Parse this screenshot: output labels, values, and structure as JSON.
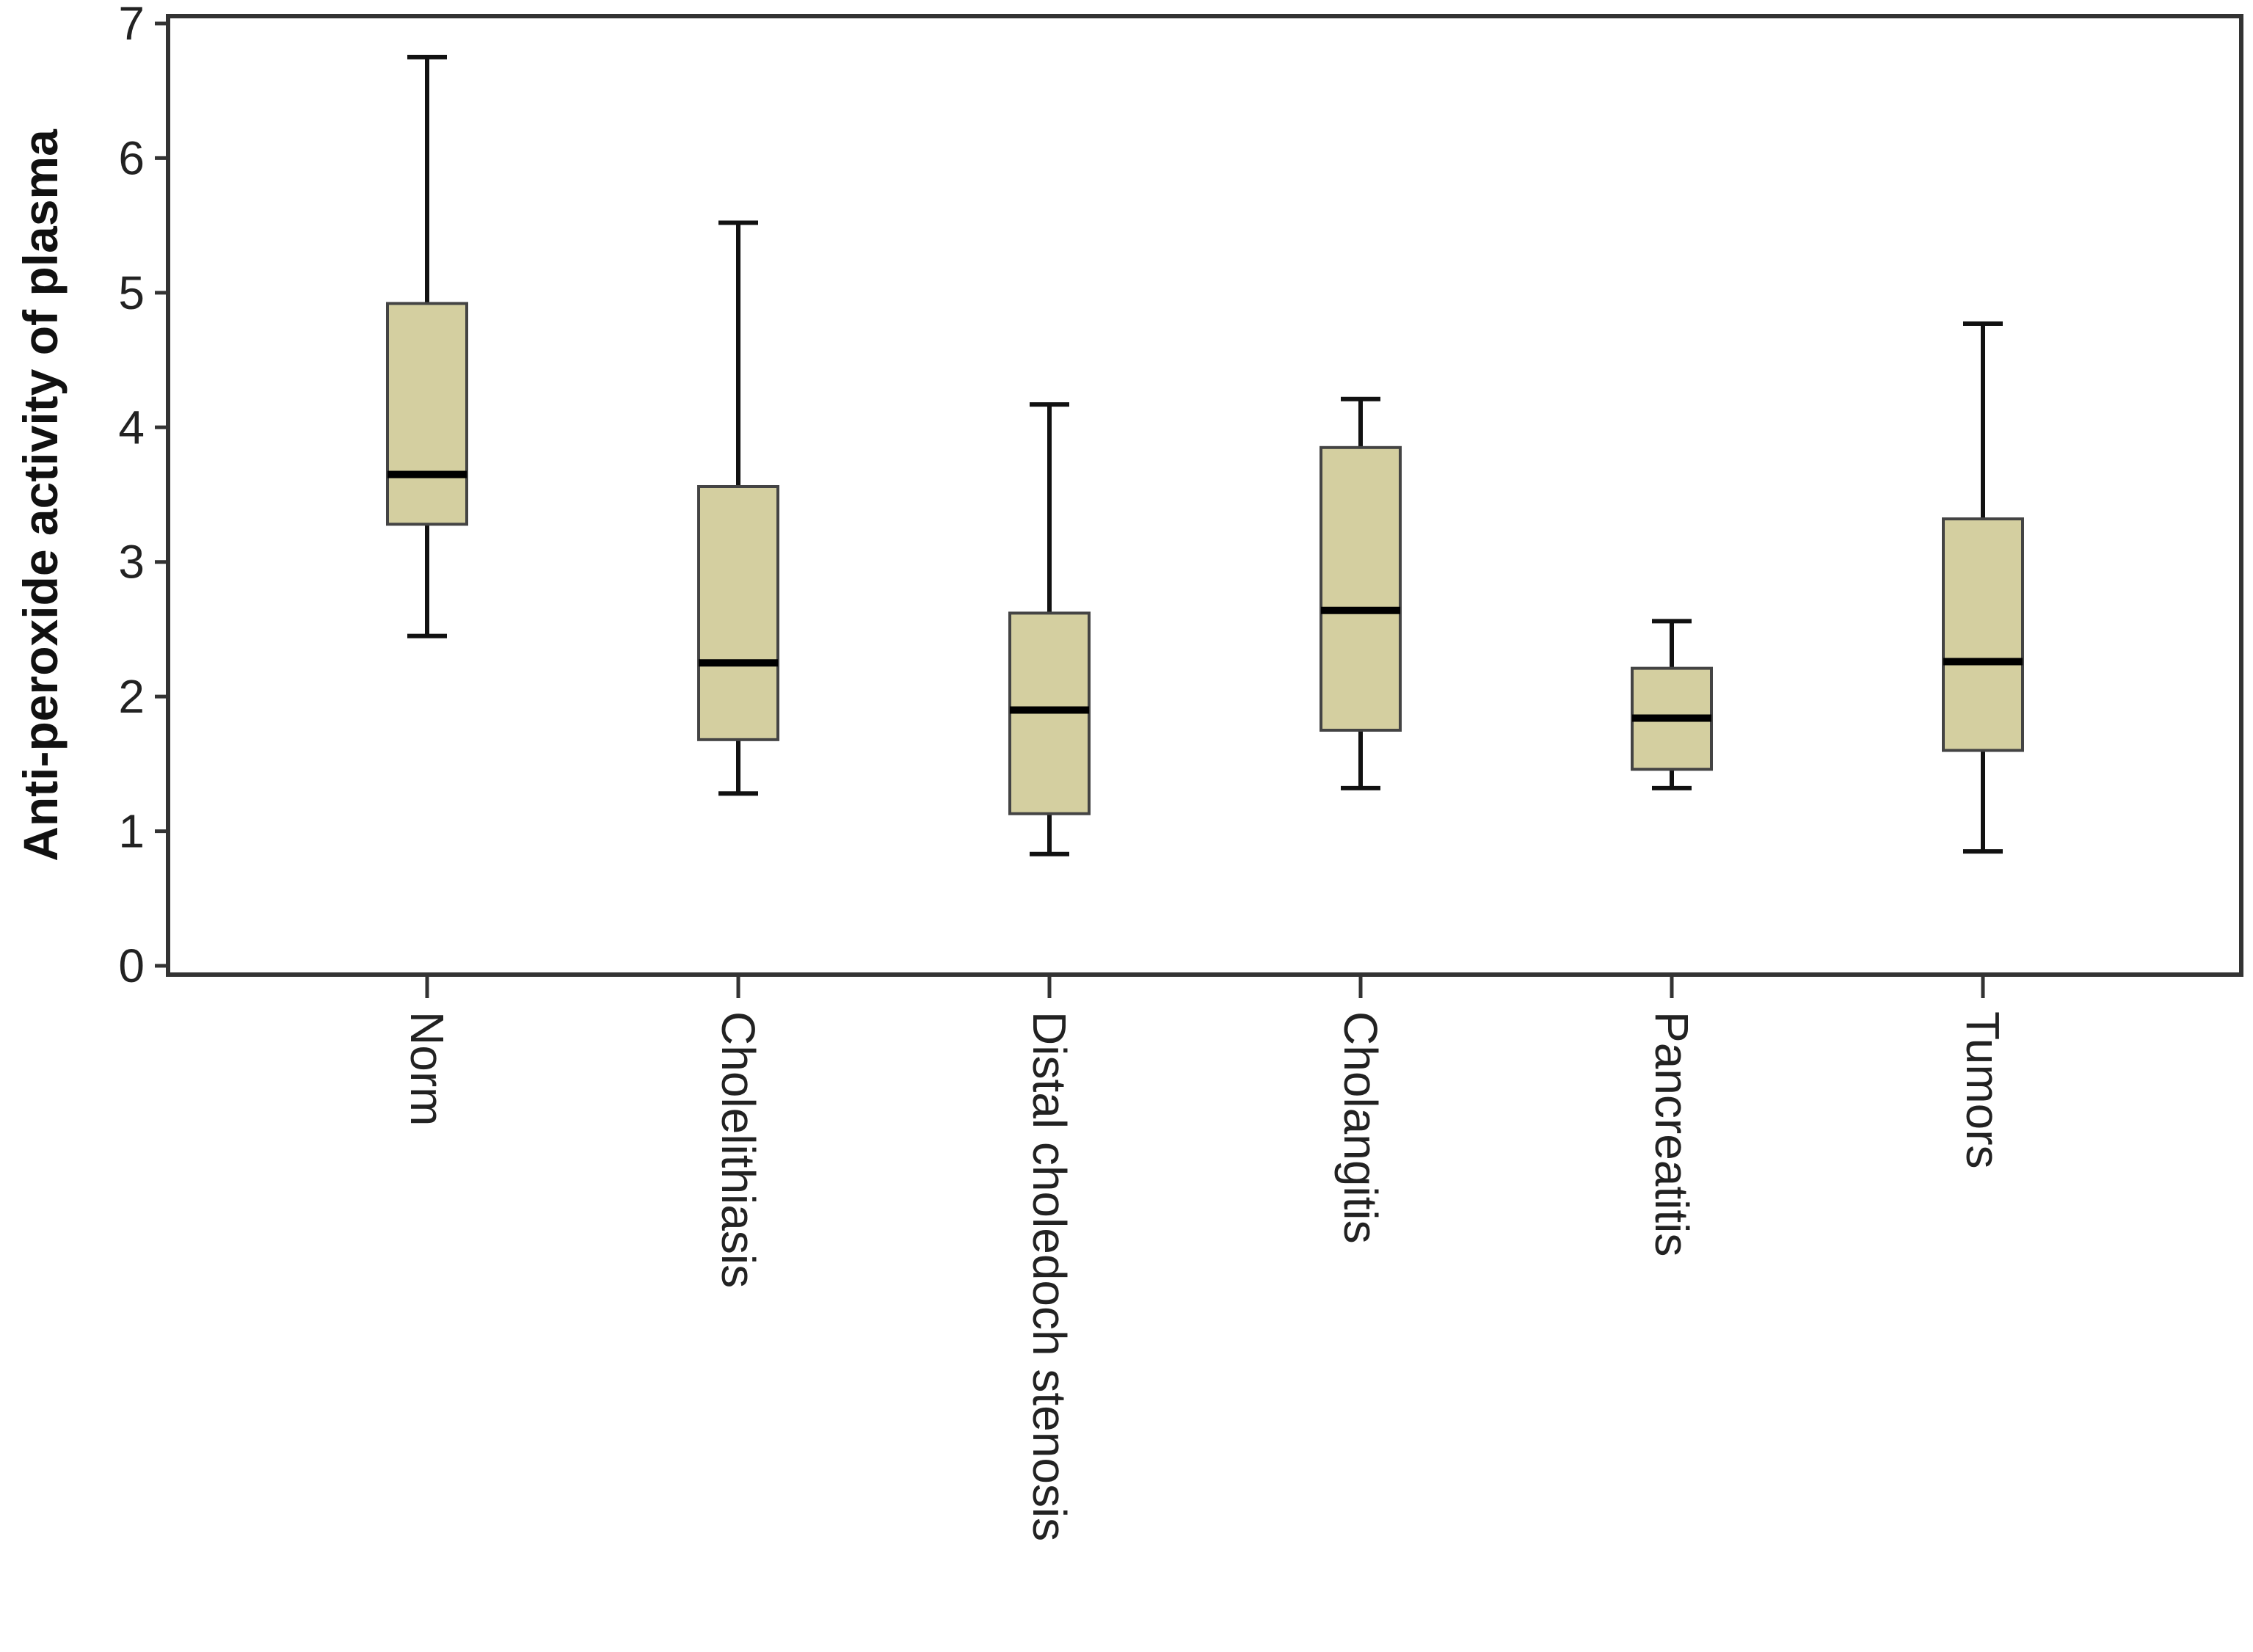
{
  "chart_data": {
    "type": "boxplot",
    "title": "",
    "xlabel": "",
    "ylabel": "Anti-peroxide activity of plasma",
    "ylim": [
      0,
      7
    ],
    "yticks": [
      0,
      1,
      2,
      3,
      4,
      5,
      6,
      7
    ],
    "grid": false,
    "categories": [
      "Norm",
      "Cholelithiasis",
      "Distal choledoch stenosis",
      "Cholangitis",
      "Pancreatitis",
      "Tumors"
    ],
    "boxes": [
      {
        "name": "Norm",
        "min": 2.45,
        "q1": 3.28,
        "median": 3.65,
        "q3": 4.92,
        "max": 6.75
      },
      {
        "name": "Cholelithiasis",
        "min": 1.28,
        "q1": 1.68,
        "median": 2.25,
        "q3": 3.56,
        "max": 5.52
      },
      {
        "name": "Distal choledoch stenosis",
        "min": 0.83,
        "q1": 1.13,
        "median": 1.9,
        "q3": 2.62,
        "max": 4.17
      },
      {
        "name": "Cholangitis",
        "min": 1.32,
        "q1": 1.75,
        "median": 2.64,
        "q3": 3.85,
        "max": 4.21
      },
      {
        "name": "Pancreatitis",
        "min": 1.32,
        "q1": 1.46,
        "median": 1.84,
        "q3": 2.21,
        "max": 2.56
      },
      {
        "name": "Tumors",
        "min": 0.85,
        "q1": 1.6,
        "median": 2.26,
        "q3": 3.32,
        "max": 4.77
      }
    ],
    "colors": {
      "box_fill": "#d4cfa0",
      "box_stroke": "#444444",
      "whisker": "#111111",
      "median": "#000000",
      "frame": "#333333"
    }
  }
}
